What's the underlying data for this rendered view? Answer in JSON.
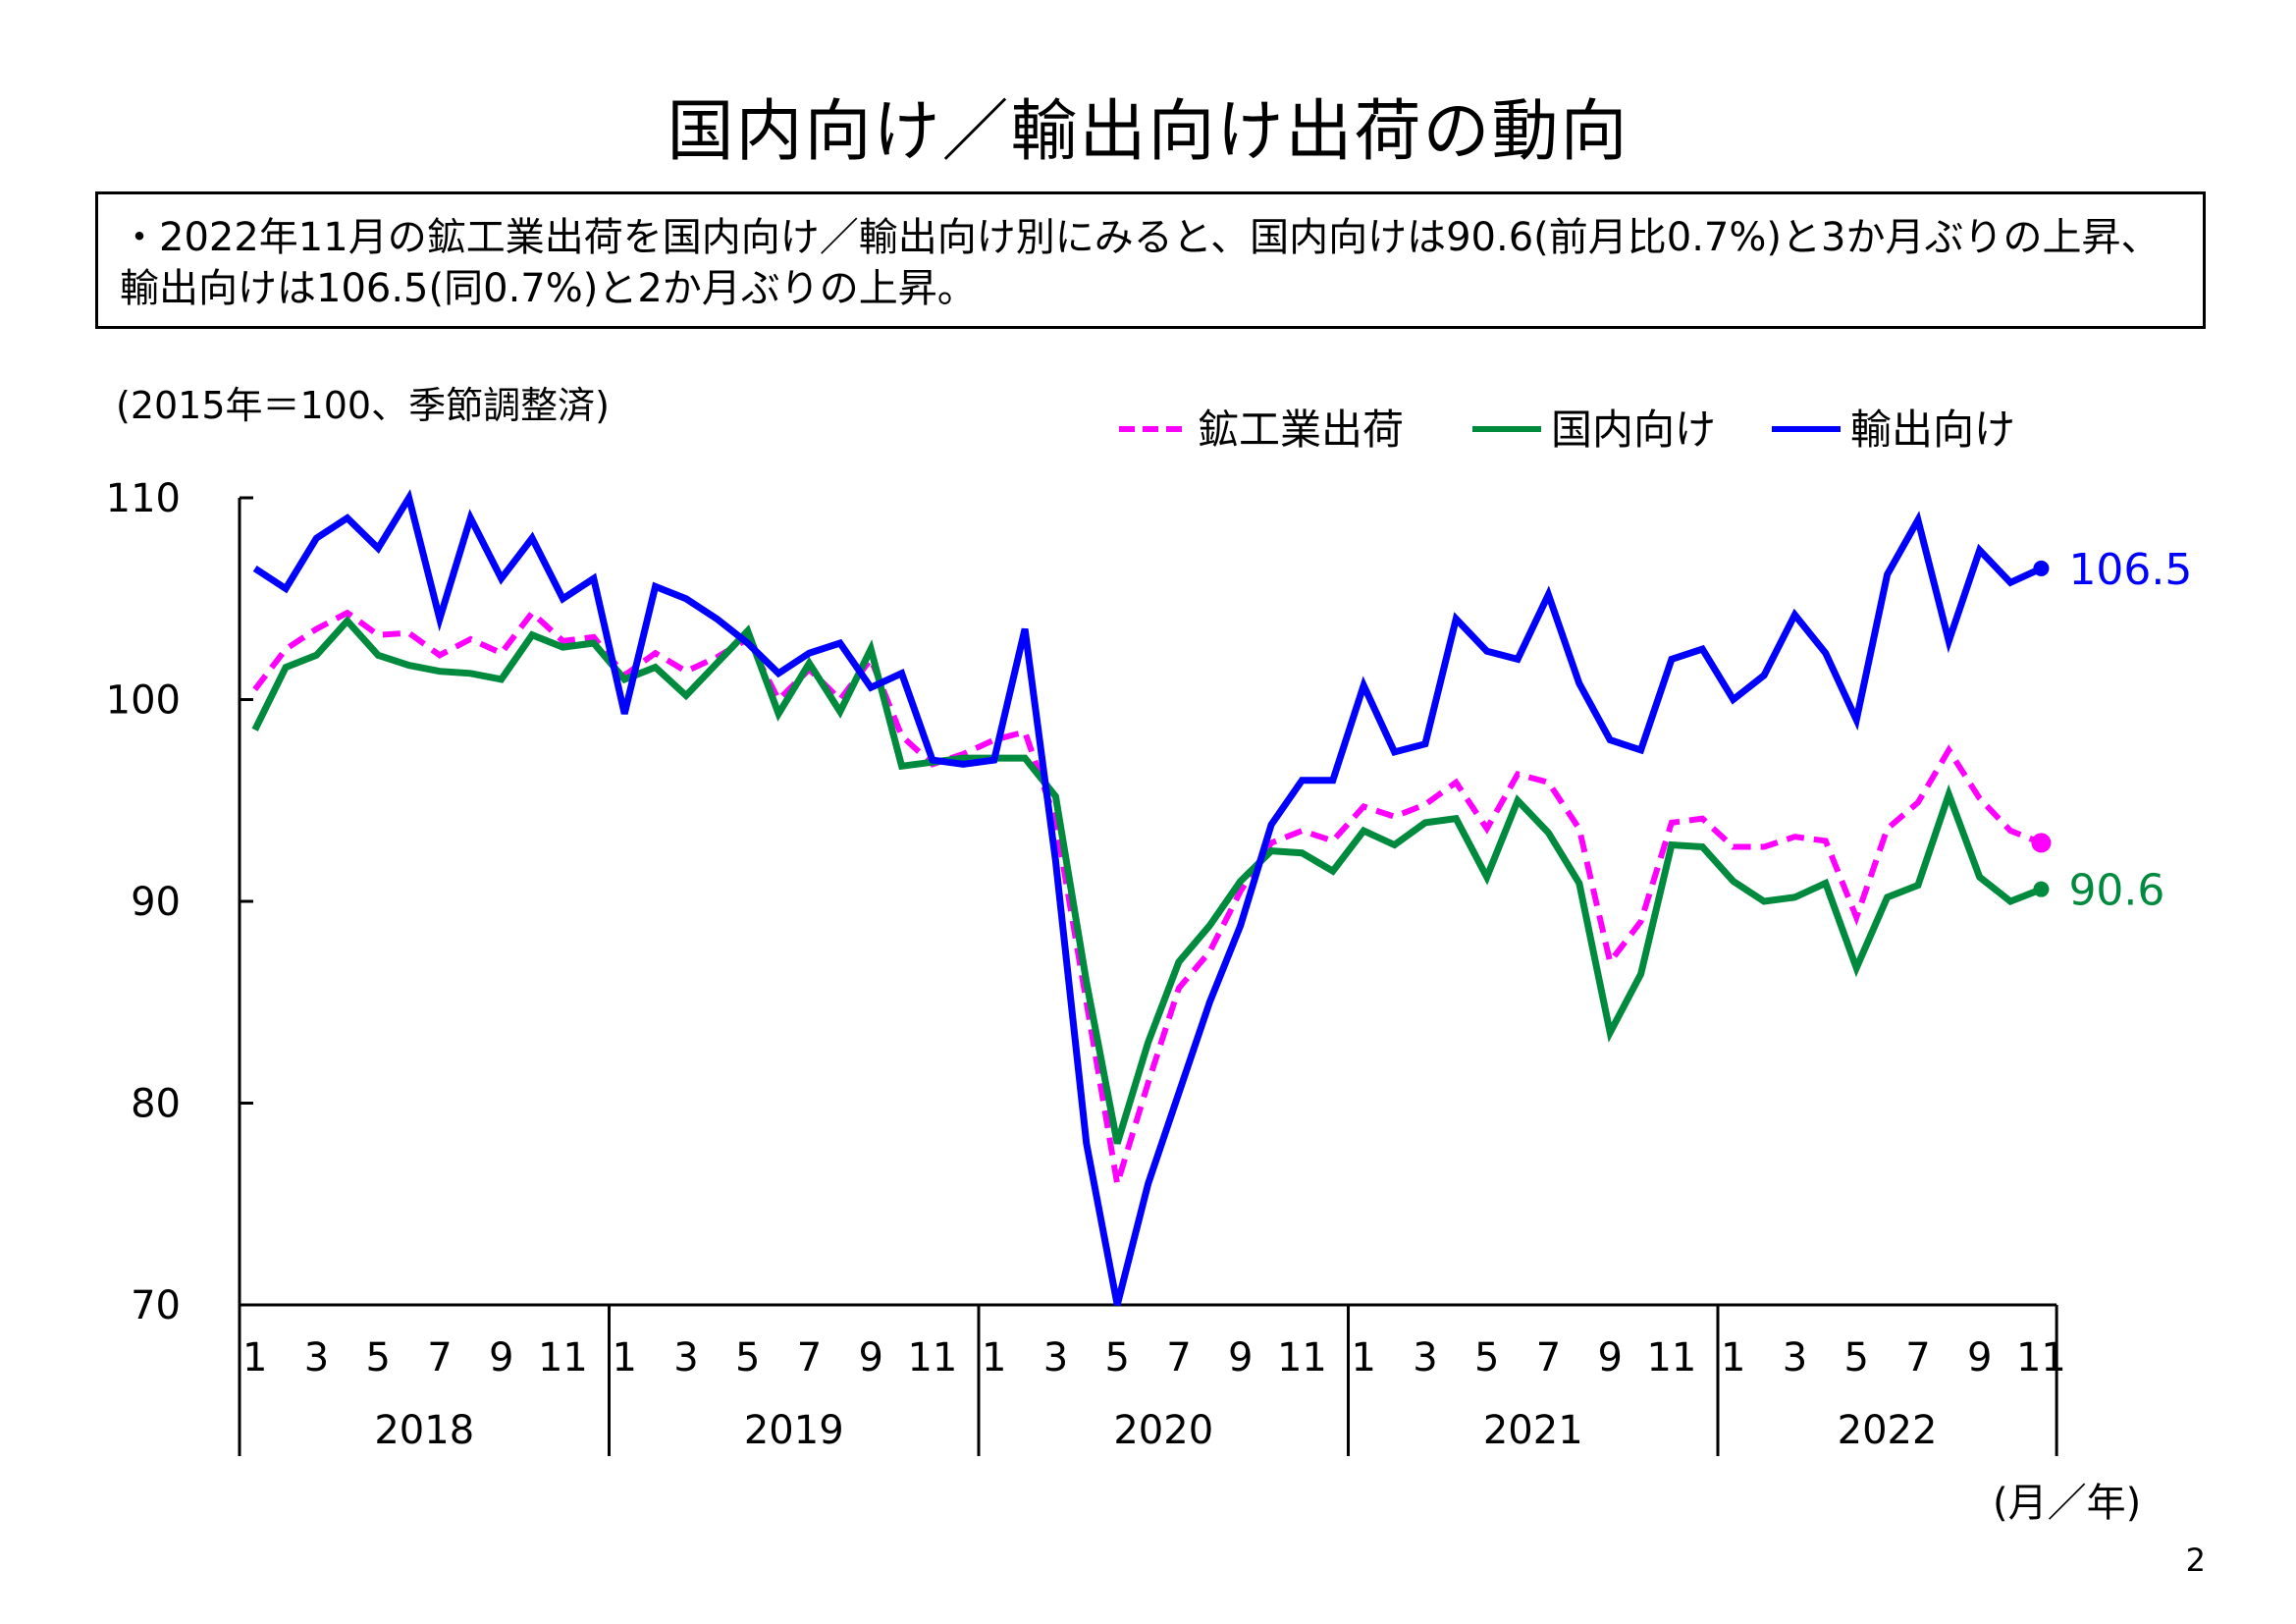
{
  "title": "国内向け／輸出向け出荷の動向",
  "summary": "・2022年11月の鉱工業出荷を国内向け／輸出向け別にみると、国内向けは90.6(前月比0.7%)と3か月ぶりの上昇、輸出向けは106.5(同0.7%)と2か月ぶりの上昇。",
  "unit_note": "(2015年＝100、季節調整済)",
  "x_unit": "(月／年)",
  "page_number": "2",
  "chart_data": {
    "type": "line",
    "title": "国内向け／輸出向け出荷の動向",
    "ylabel": "(2015年＝100、季節調整済)",
    "xlabel": "(月／年)",
    "ylim": [
      70,
      110
    ],
    "yticks": [
      "70",
      "80",
      "90",
      "100",
      "110"
    ],
    "ytick_values": [
      70,
      80,
      90,
      100,
      110
    ],
    "years": [
      "2018",
      "2019",
      "2020",
      "2021",
      "2022"
    ],
    "month_ticks": [
      "1",
      "3",
      "5",
      "7",
      "9",
      "11"
    ],
    "period": "2018-01 to 2022-11 (monthly)",
    "legend_position": "top-right",
    "grid": false,
    "series": [
      {
        "name": "鉱工業出荷",
        "color": "#FF00FF",
        "dashed": true,
        "values": [
          100.5,
          102.5,
          103.5,
          104.3,
          103.2,
          103.3,
          102.2,
          103.0,
          102.3,
          104.3,
          102.9,
          103.1,
          101.2,
          102.3,
          101.4,
          102.1,
          103.0,
          100.0,
          101.5,
          100.0,
          102.0,
          98.2,
          96.8,
          97.3,
          98.0,
          98.4,
          94.0,
          85.0,
          76.0,
          81.0,
          85.7,
          87.5,
          90.5,
          92.9,
          93.5,
          93.0,
          94.7,
          94.2,
          94.8,
          95.9,
          93.6,
          96.3,
          95.9,
          93.6,
          87.0,
          89.0,
          93.9,
          94.1,
          92.7,
          92.7,
          93.2,
          93.0,
          89.2,
          93.6,
          94.9,
          97.5,
          95.1,
          93.5,
          92.9
        ]
      },
      {
        "name": "国内向け",
        "color": "#008A3E",
        "end_label": "90.6",
        "values": [
          98.5,
          101.6,
          102.2,
          103.9,
          102.2,
          101.7,
          101.4,
          101.3,
          101.0,
          103.2,
          102.6,
          102.8,
          101.0,
          101.6,
          100.2,
          101.8,
          103.4,
          99.3,
          101.8,
          99.4,
          102.5,
          96.7,
          96.9,
          97.1,
          97.1,
          97.1,
          95.2,
          86.0,
          78.0,
          83.0,
          87.0,
          88.8,
          91.0,
          92.5,
          92.4,
          91.5,
          93.5,
          92.8,
          93.9,
          94.1,
          91.2,
          95.0,
          93.4,
          90.9,
          83.5,
          86.4,
          92.8,
          92.7,
          91.0,
          90.0,
          90.2,
          90.9,
          86.7,
          90.2,
          90.8,
          95.3,
          91.2,
          90.0,
          90.6
        ]
      },
      {
        "name": "輸出向け",
        "color": "#0000FF",
        "end_label": "106.5",
        "values": [
          106.5,
          105.5,
          108.0,
          109.0,
          107.5,
          110.0,
          104.0,
          109.0,
          106.0,
          108.0,
          105.0,
          106.0,
          99.3,
          105.6,
          105.0,
          104.0,
          102.8,
          101.3,
          102.3,
          102.8,
          100.6,
          101.3,
          97.0,
          96.8,
          97.0,
          103.5,
          92.0,
          78.0,
          70.0,
          76.0,
          80.5,
          85.0,
          88.8,
          93.8,
          96.0,
          96.0,
          100.7,
          97.4,
          97.8,
          104.0,
          102.4,
          102.0,
          105.2,
          100.8,
          98.0,
          97.5,
          102.0,
          102.5,
          100.0,
          101.2,
          104.2,
          102.3,
          99.0,
          106.2,
          108.9,
          102.9,
          107.4,
          105.8,
          106.5
        ]
      }
    ]
  }
}
